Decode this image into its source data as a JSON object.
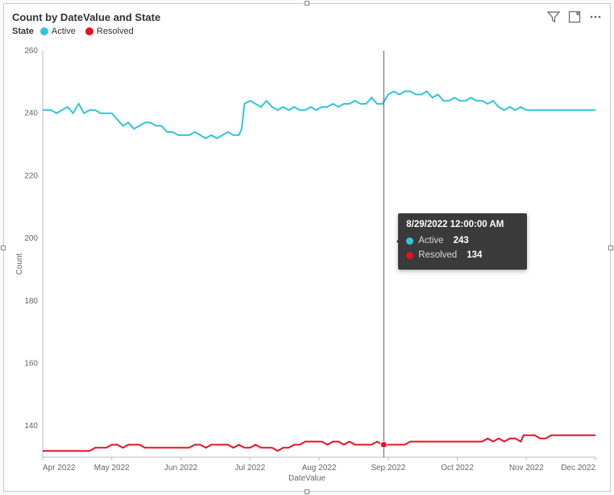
{
  "title": "Count by DateValue and State",
  "legend": {
    "title": "State",
    "items": [
      {
        "label": "Active",
        "color": "#30c4e0"
      },
      {
        "label": "Resolved",
        "color": "#e81123"
      }
    ]
  },
  "chart": {
    "type": "line",
    "background_color": "#ffffff",
    "axis_color": "#bbbbbb",
    "tick_fontsize": 10,
    "title_fontsize": 13,
    "line_width": 2,
    "y": {
      "title": "Count",
      "min": 130,
      "max": 260,
      "tick_step": 20
    },
    "x": {
      "title": "DateValue",
      "ticks": [
        {
          "t": 0.0,
          "label": "Apr 2022"
        },
        {
          "t": 0.125,
          "label": "May 2022"
        },
        {
          "t": 0.25,
          "label": "Jun 2022"
        },
        {
          "t": 0.375,
          "label": "Jul 2022"
        },
        {
          "t": 0.5,
          "label": "Aug 2022"
        },
        {
          "t": 0.625,
          "label": "Sep 2022"
        },
        {
          "t": 0.75,
          "label": "Oct 2022"
        },
        {
          "t": 0.875,
          "label": "Nov 2022"
        },
        {
          "t": 1.0,
          "label": "Dec 2022"
        }
      ]
    },
    "series": [
      {
        "name": "Active",
        "color": "#30c4e0",
        "points": [
          [
            0.0,
            241
          ],
          [
            0.015,
            241
          ],
          [
            0.025,
            240
          ],
          [
            0.035,
            241
          ],
          [
            0.045,
            242
          ],
          [
            0.055,
            240
          ],
          [
            0.065,
            243
          ],
          [
            0.075,
            240
          ],
          [
            0.085,
            241
          ],
          [
            0.095,
            241
          ],
          [
            0.105,
            240
          ],
          [
            0.115,
            240
          ],
          [
            0.125,
            240
          ],
          [
            0.135,
            238
          ],
          [
            0.145,
            236
          ],
          [
            0.155,
            237
          ],
          [
            0.165,
            235
          ],
          [
            0.175,
            236
          ],
          [
            0.185,
            237
          ],
          [
            0.195,
            237
          ],
          [
            0.205,
            236
          ],
          [
            0.215,
            236
          ],
          [
            0.225,
            234
          ],
          [
            0.235,
            234
          ],
          [
            0.245,
            233
          ],
          [
            0.255,
            233
          ],
          [
            0.265,
            233
          ],
          [
            0.275,
            234
          ],
          [
            0.285,
            233
          ],
          [
            0.295,
            232
          ],
          [
            0.305,
            233
          ],
          [
            0.315,
            232
          ],
          [
            0.325,
            233
          ],
          [
            0.335,
            234
          ],
          [
            0.345,
            233
          ],
          [
            0.355,
            233
          ],
          [
            0.36,
            235
          ],
          [
            0.365,
            243
          ],
          [
            0.375,
            244
          ],
          [
            0.385,
            243
          ],
          [
            0.395,
            242
          ],
          [
            0.405,
            244
          ],
          [
            0.415,
            242
          ],
          [
            0.425,
            241
          ],
          [
            0.435,
            242
          ],
          [
            0.445,
            241
          ],
          [
            0.455,
            242
          ],
          [
            0.465,
            241
          ],
          [
            0.475,
            241
          ],
          [
            0.485,
            242
          ],
          [
            0.495,
            241
          ],
          [
            0.505,
            242
          ],
          [
            0.515,
            242
          ],
          [
            0.525,
            243
          ],
          [
            0.535,
            242
          ],
          [
            0.545,
            243
          ],
          [
            0.555,
            243
          ],
          [
            0.565,
            244
          ],
          [
            0.575,
            243
          ],
          [
            0.585,
            243
          ],
          [
            0.595,
            245
          ],
          [
            0.605,
            243
          ],
          [
            0.615,
            243
          ],
          [
            0.625,
            246
          ],
          [
            0.635,
            247
          ],
          [
            0.645,
            246
          ],
          [
            0.655,
            247
          ],
          [
            0.665,
            247
          ],
          [
            0.675,
            246
          ],
          [
            0.685,
            246
          ],
          [
            0.695,
            247
          ],
          [
            0.705,
            245
          ],
          [
            0.715,
            246
          ],
          [
            0.725,
            244
          ],
          [
            0.735,
            244
          ],
          [
            0.745,
            245
          ],
          [
            0.755,
            244
          ],
          [
            0.765,
            244
          ],
          [
            0.775,
            245
          ],
          [
            0.785,
            244
          ],
          [
            0.795,
            244
          ],
          [
            0.805,
            243
          ],
          [
            0.815,
            244
          ],
          [
            0.825,
            242
          ],
          [
            0.835,
            241
          ],
          [
            0.845,
            242
          ],
          [
            0.855,
            241
          ],
          [
            0.865,
            242
          ],
          [
            0.875,
            241
          ],
          [
            0.885,
            241
          ],
          [
            0.895,
            241
          ],
          [
            0.905,
            241
          ],
          [
            0.915,
            241
          ],
          [
            0.925,
            241
          ],
          [
            0.935,
            241
          ],
          [
            0.945,
            241
          ],
          [
            0.955,
            241
          ],
          [
            0.965,
            241
          ],
          [
            0.975,
            241
          ],
          [
            0.985,
            241
          ],
          [
            1.0,
            241
          ]
        ]
      },
      {
        "name": "Resolved",
        "color": "#e81123",
        "points": [
          [
            0.0,
            132
          ],
          [
            0.015,
            132
          ],
          [
            0.025,
            132
          ],
          [
            0.035,
            132
          ],
          [
            0.045,
            132
          ],
          [
            0.055,
            132
          ],
          [
            0.065,
            132
          ],
          [
            0.075,
            132
          ],
          [
            0.085,
            132
          ],
          [
            0.095,
            133
          ],
          [
            0.105,
            133
          ],
          [
            0.115,
            133
          ],
          [
            0.125,
            134
          ],
          [
            0.135,
            134
          ],
          [
            0.145,
            133
          ],
          [
            0.155,
            134
          ],
          [
            0.165,
            134
          ],
          [
            0.175,
            134
          ],
          [
            0.185,
            133
          ],
          [
            0.195,
            133
          ],
          [
            0.205,
            133
          ],
          [
            0.215,
            133
          ],
          [
            0.225,
            133
          ],
          [
            0.235,
            133
          ],
          [
            0.245,
            133
          ],
          [
            0.255,
            133
          ],
          [
            0.265,
            133
          ],
          [
            0.275,
            134
          ],
          [
            0.285,
            134
          ],
          [
            0.295,
            133
          ],
          [
            0.305,
            134
          ],
          [
            0.315,
            134
          ],
          [
            0.325,
            134
          ],
          [
            0.335,
            134
          ],
          [
            0.345,
            133
          ],
          [
            0.355,
            134
          ],
          [
            0.365,
            133
          ],
          [
            0.375,
            133
          ],
          [
            0.385,
            134
          ],
          [
            0.395,
            133
          ],
          [
            0.405,
            133
          ],
          [
            0.415,
            133
          ],
          [
            0.425,
            132
          ],
          [
            0.435,
            133
          ],
          [
            0.445,
            133
          ],
          [
            0.455,
            134
          ],
          [
            0.465,
            134
          ],
          [
            0.475,
            135
          ],
          [
            0.485,
            135
          ],
          [
            0.495,
            135
          ],
          [
            0.505,
            135
          ],
          [
            0.515,
            134
          ],
          [
            0.525,
            135
          ],
          [
            0.535,
            135
          ],
          [
            0.545,
            134
          ],
          [
            0.555,
            135
          ],
          [
            0.565,
            134
          ],
          [
            0.575,
            134
          ],
          [
            0.585,
            134
          ],
          [
            0.595,
            134
          ],
          [
            0.605,
            135
          ],
          [
            0.615,
            134
          ],
          [
            0.625,
            134
          ],
          [
            0.635,
            134
          ],
          [
            0.645,
            134
          ],
          [
            0.655,
            134
          ],
          [
            0.665,
            135
          ],
          [
            0.675,
            135
          ],
          [
            0.685,
            135
          ],
          [
            0.695,
            135
          ],
          [
            0.705,
            135
          ],
          [
            0.715,
            135
          ],
          [
            0.725,
            135
          ],
          [
            0.735,
            135
          ],
          [
            0.745,
            135
          ],
          [
            0.755,
            135
          ],
          [
            0.765,
            135
          ],
          [
            0.775,
            135
          ],
          [
            0.785,
            135
          ],
          [
            0.795,
            135
          ],
          [
            0.805,
            136
          ],
          [
            0.815,
            135
          ],
          [
            0.825,
            136
          ],
          [
            0.835,
            135
          ],
          [
            0.845,
            136
          ],
          [
            0.855,
            136
          ],
          [
            0.865,
            135
          ],
          [
            0.87,
            137
          ],
          [
            0.88,
            137
          ],
          [
            0.89,
            137
          ],
          [
            0.9,
            136
          ],
          [
            0.91,
            136
          ],
          [
            0.92,
            137
          ],
          [
            0.93,
            137
          ],
          [
            0.94,
            137
          ],
          [
            0.95,
            137
          ],
          [
            0.96,
            137
          ],
          [
            0.97,
            137
          ],
          [
            0.98,
            137
          ],
          [
            0.99,
            137
          ],
          [
            1.0,
            137
          ]
        ]
      }
    ]
  },
  "hover": {
    "t": 0.617,
    "header": "8/29/2022 12:00:00 AM",
    "rows": [
      {
        "color": "#30c4e0",
        "label": "Active",
        "value": "243"
      },
      {
        "color": "#e81123",
        "label": "Resolved",
        "value": "134"
      }
    ]
  },
  "icons": {
    "filter": "filter-icon",
    "focus": "focus-mode-icon",
    "more": "more-options-icon"
  }
}
